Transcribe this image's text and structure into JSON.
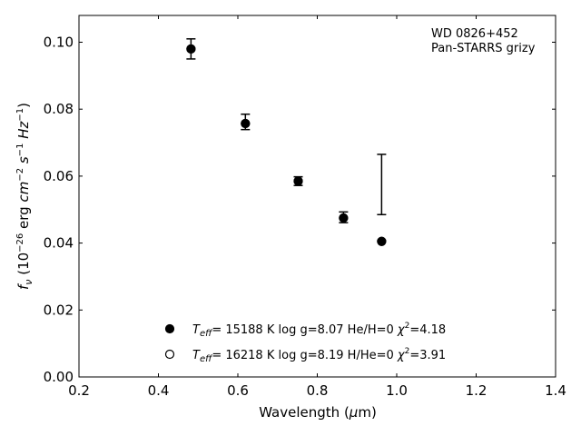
{
  "chart_data": {
    "type": "scatter",
    "annotation": [
      "WD 0826+452",
      "Pan-STARRS grizy"
    ],
    "xlabel": "Wavelength (μm)",
    "ylabel": "fν (10⁻²⁶ erg cm⁻² s⁻¹ Hz⁻¹)",
    "xlim": [
      0.2,
      1.4
    ],
    "ylim": [
      0.0,
      0.108
    ],
    "xticks": [
      "0.2",
      "0.4",
      "0.6",
      "0.8",
      "1.0",
      "1.2",
      "1.4"
    ],
    "yticks": [
      "0.00",
      "0.02",
      "0.04",
      "0.06",
      "0.08",
      "0.10"
    ],
    "observed": {
      "x": [
        0.482,
        0.619,
        0.752,
        0.866,
        0.962
      ],
      "y": [
        0.098,
        0.0762,
        0.0585,
        0.0477,
        0.0575
      ],
      "yerr": [
        0.003,
        0.0023,
        0.0013,
        0.0016,
        0.009
      ]
    },
    "series": [
      {
        "name": "Teff= 15188 K  log g=8.07  He/H=0  χ²=4.18",
        "marker": "filled",
        "x": [
          0.482,
          0.619,
          0.752,
          0.866,
          0.962
        ],
        "y": [
          0.098,
          0.0757,
          0.0585,
          0.0475,
          0.0405
        ]
      },
      {
        "name": "Teff= 16218 K  log g=8.19  H/He=0  χ²=3.91",
        "marker": "open",
        "x": [
          0.482,
          0.619,
          0.752,
          0.866,
          0.962
        ],
        "y": [
          0.098,
          0.0757,
          0.0585,
          0.0475,
          0.0405
        ]
      }
    ],
    "legend": [
      {
        "teff": "15188 K",
        "rest": "  log g=8.07  He/H=0  ",
        "chi2": "=4.18",
        "marker": "filled"
      },
      {
        "teff": "16218 K",
        "rest": "  log g=8.19  H/He=0  ",
        "chi2": "=3.91",
        "marker": "open"
      }
    ],
    "legend_position": "lower-center",
    "grid": false
  }
}
